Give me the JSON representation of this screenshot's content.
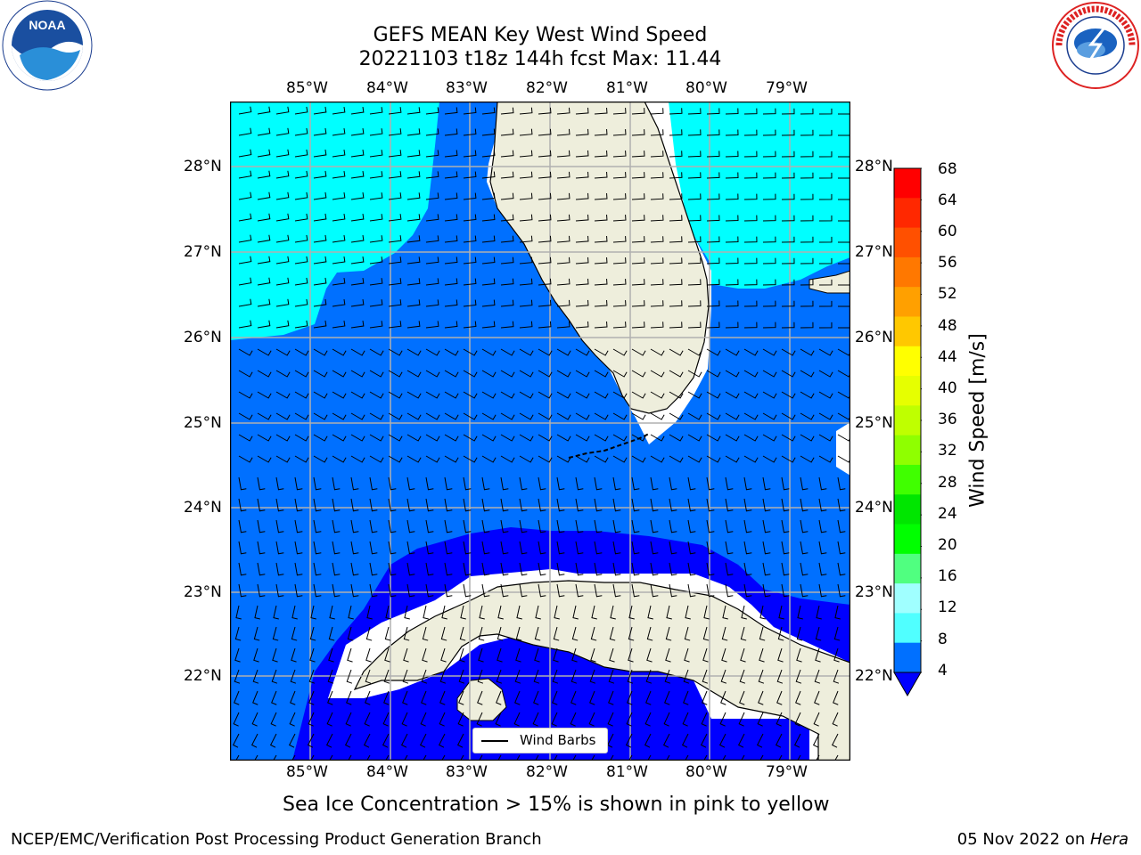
{
  "title": {
    "line1": "GEFS MEAN Key West Wind Speed",
    "line2": "20221103 t18z 144h fcst   Max: 11.44"
  },
  "map": {
    "lon_labels": [
      "85°W",
      "84°W",
      "83°W",
      "82°W",
      "81°W",
      "80°W",
      "79°W"
    ],
    "lat_labels": [
      "28°N",
      "27°N",
      "26°N",
      "25°N",
      "24°N",
      "23°N",
      "22°N"
    ],
    "lon_range": [
      -86.0,
      -78.3
    ],
    "lat_range": [
      21.0,
      28.75
    ],
    "legend_label": "Wind Barbs",
    "land_color": "#eeeedc",
    "colors": {
      "4-8": "#0070ff",
      "8-12": "#00ffff",
      "below-4": "#0000ff"
    }
  },
  "colorbar": {
    "label": "Wind Speed [m/s]",
    "ticks": [
      "68",
      "64",
      "60",
      "56",
      "52",
      "48",
      "44",
      "40",
      "36",
      "32",
      "28",
      "24",
      "20",
      "16",
      "12",
      "8",
      "4"
    ],
    "colors": [
      "#ff0000",
      "#ff2800",
      "#ff5000",
      "#ff7800",
      "#ffa000",
      "#ffc800",
      "#ffff00",
      "#e6ff00",
      "#bfff00",
      "#8fff00",
      "#40ff00",
      "#00e600",
      "#00ff00",
      "#50ff80",
      "#a0ffff",
      "#50ffff",
      "#00ffff",
      "#0070ff"
    ],
    "under_color": "#0000ff"
  },
  "caption": "Sea Ice Concentration > 15% is shown in pink to yellow",
  "footer": {
    "left": "NCEP/EMC/Verification Post Processing Product Generation Branch",
    "date": "05 Nov 2022 on ",
    "machine": "Hera"
  },
  "logos": {
    "noaa_text": "NOAA",
    "nws_text": "NATIONAL WEATHER SERVICE"
  }
}
